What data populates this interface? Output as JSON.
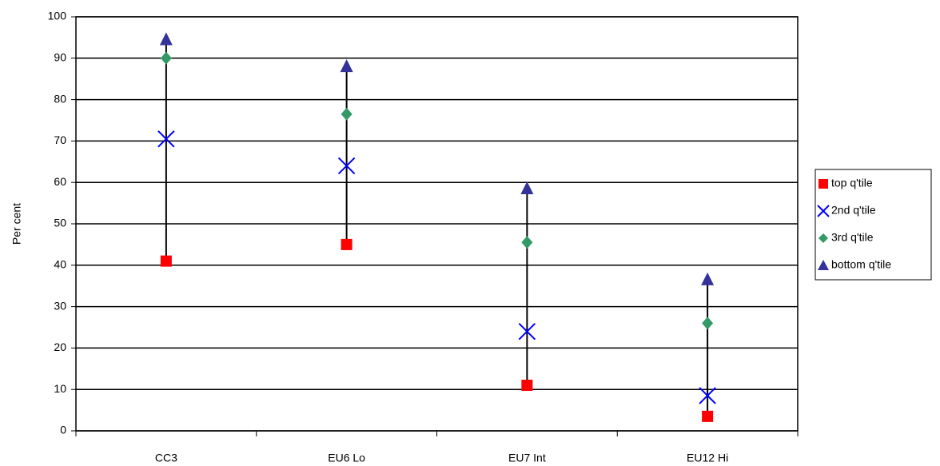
{
  "chart_data": {
    "type": "hilo",
    "y_label": "Per cent",
    "categories": [
      "CC3",
      "EU6 Lo",
      "EU7 Int",
      "EU12 Hi"
    ],
    "series": [
      {
        "name": "top q'tile",
        "color": "#ff0000",
        "marker": "square",
        "values": [
          41,
          45,
          11,
          3.5
        ]
      },
      {
        "name": "2nd q'tile",
        "color": "#0000ff",
        "marker": "x",
        "values": [
          70.5,
          64,
          24,
          8.5
        ]
      },
      {
        "name": "3rd q'tile",
        "color": "#339966",
        "marker": "diamond",
        "values": [
          90,
          76.5,
          45.5,
          26
        ]
      },
      {
        "name": "bottom q'tile",
        "color": "#333399",
        "marker": "triangle",
        "values": [
          94.5,
          88,
          58.5,
          36.5
        ]
      }
    ],
    "ylim": [
      0,
      100
    ],
    "yticks": [
      0,
      10,
      20,
      30,
      40,
      50,
      60,
      70,
      80,
      90,
      100
    ],
    "grid": true,
    "legend": "right"
  }
}
